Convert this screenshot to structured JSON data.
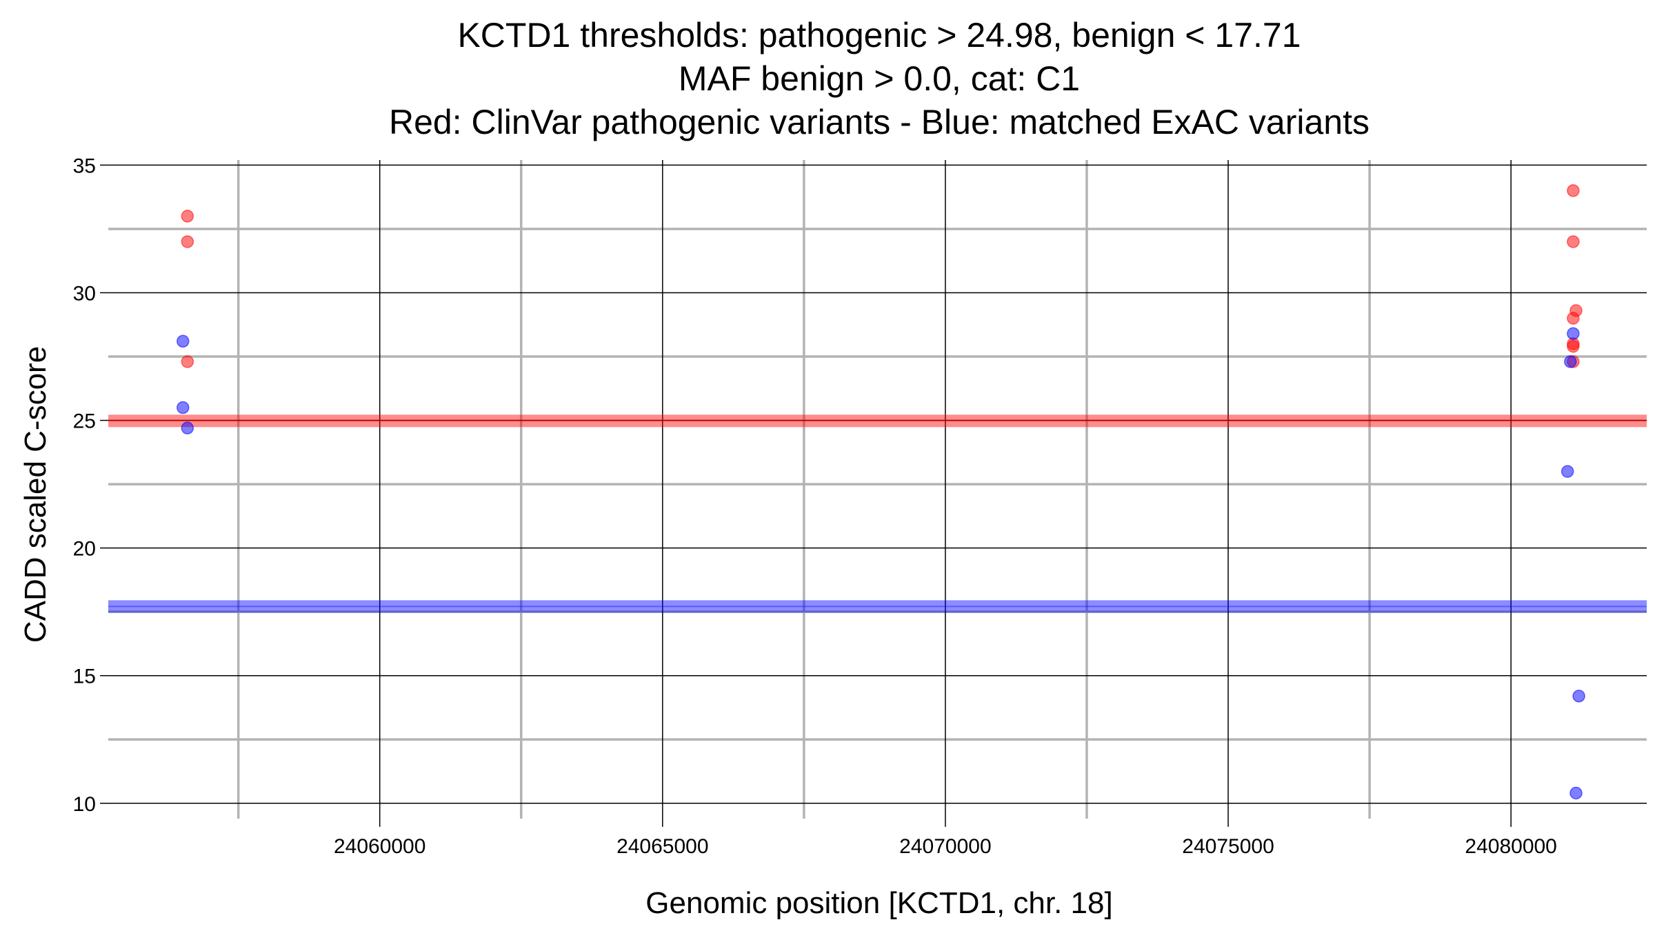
{
  "chart_data": {
    "type": "scatter",
    "title": [
      "KCTD1 thresholds: pathogenic > 24.98, benign < 17.71",
      "MAF benign > 0.0, cat: C1",
      "Red: ClinVar pathogenic variants - Blue: matched ExAC variants"
    ],
    "xlabel": "Genomic position [KCTD1, chr. 18]",
    "ylabel": "CADD scaled C-score",
    "xlim": [
      24055200,
      24082400
    ],
    "ylim": [
      9.4,
      35.2
    ],
    "x_major_ticks": [
      24060000,
      24065000,
      24070000,
      24075000,
      24080000
    ],
    "x_minor_gridlines": [
      24057500,
      24062500,
      24067500,
      24072500,
      24077500
    ],
    "y_major_ticks": [
      10,
      15,
      20,
      25,
      30,
      35
    ],
    "y_minor_gridlines": [
      12.5,
      17.5,
      22.5,
      27.5,
      32.5
    ],
    "x_tick_labels": [
      "24060000",
      "24065000",
      "24070000",
      "24075000",
      "24080000"
    ],
    "y_tick_labels": [
      "10",
      "15",
      "20",
      "25",
      "30",
      "35"
    ],
    "thresholds": [
      {
        "name": "pathogenic",
        "value": 24.98,
        "color": "#ff0000"
      },
      {
        "name": "benign",
        "value": 17.71,
        "color": "#0000ff"
      }
    ],
    "series": [
      {
        "name": "ClinVar pathogenic variants",
        "color": "#ff0000",
        "points": [
          {
            "x": 24056600,
            "y": 33.0
          },
          {
            "x": 24056600,
            "y": 32.0
          },
          {
            "x": 24056600,
            "y": 27.3
          },
          {
            "x": 24081100,
            "y": 34.0
          },
          {
            "x": 24081100,
            "y": 32.0
          },
          {
            "x": 24081150,
            "y": 29.3
          },
          {
            "x": 24081100,
            "y": 29.0
          },
          {
            "x": 24081100,
            "y": 28.0
          },
          {
            "x": 24081100,
            "y": 27.9
          },
          {
            "x": 24081100,
            "y": 27.3
          }
        ]
      },
      {
        "name": "matched ExAC variants",
        "color": "#0000ff",
        "points": [
          {
            "x": 24056520,
            "y": 28.1
          },
          {
            "x": 24056520,
            "y": 25.5
          },
          {
            "x": 24056600,
            "y": 24.7
          },
          {
            "x": 24081100,
            "y": 28.4
          },
          {
            "x": 24081050,
            "y": 27.3
          },
          {
            "x": 24081000,
            "y": 23.0
          },
          {
            "x": 24081200,
            "y": 14.2
          },
          {
            "x": 24081150,
            "y": 10.4
          }
        ]
      }
    ]
  }
}
